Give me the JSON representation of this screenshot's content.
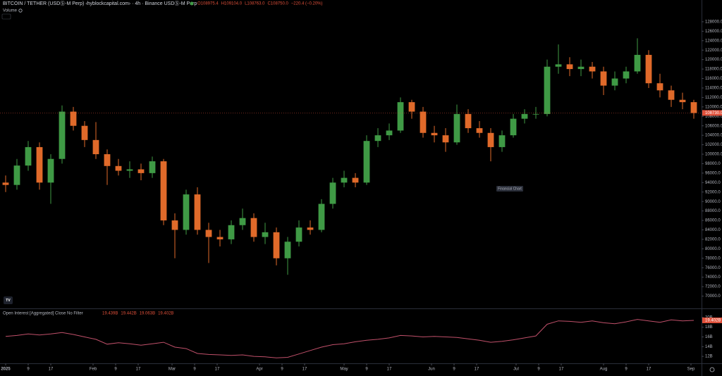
{
  "header": {
    "title": "BITCOIN / TETHER (USDⓈ-M Perp) ‹hyblockcapital.com› · 4h · Binance USDⓈ-M Perp",
    "ohlc": [
      "O108975.4",
      "H109104.0",
      "L108763.0",
      "C108750.0",
      "−220.4 (−0.20%)"
    ],
    "volume_label": "Volume",
    "tooltip": "Financial Chart",
    "logo": "TV"
  },
  "chart_data": [
    {
      "type": "candlestick",
      "up_color": "#3f9a45",
      "down_color": "#e06a2a",
      "x": [
        0,
        4,
        8,
        12,
        16,
        20,
        24,
        28,
        32,
        36,
        40,
        44,
        48,
        52,
        56,
        60,
        64,
        68,
        72,
        76,
        80,
        84,
        88,
        92,
        96,
        100,
        104,
        108,
        112,
        116,
        120,
        124,
        128,
        132,
        136,
        140,
        144,
        148,
        152,
        156,
        160,
        164,
        168,
        172,
        176,
        180,
        184,
        188,
        192,
        196,
        200,
        204,
        208,
        212,
        216,
        220,
        224,
        228,
        232,
        236,
        240,
        244
      ],
      "open": [
        94000,
        93500,
        97600,
        101500,
        94000,
        99000,
        109000,
        106000,
        103000,
        100000,
        97500,
        96500,
        96800,
        96000,
        98500,
        86000,
        84000,
        91500,
        84000,
        82500,
        82000,
        85000,
        86500,
        82500,
        83500,
        78000,
        81500,
        84500,
        84000,
        89500,
        94000,
        95000,
        94000,
        102800,
        104000,
        105000,
        111000,
        109000,
        104500,
        104000,
        102500,
        108500,
        105500,
        104500,
        101500,
        104000,
        107500,
        108500,
        108500,
        118500,
        119000,
        118000,
        118500,
        117500,
        114500,
        116000,
        117500,
        121000,
        115000,
        113500,
        111500,
        111000
      ],
      "high": [
        95500,
        99000,
        102800,
        102500,
        100000,
        110300,
        110000,
        107000,
        106800,
        101000,
        99000,
        98500,
        98000,
        99500,
        99000,
        87500,
        92500,
        93000,
        85500,
        84000,
        86000,
        88500,
        87500,
        85500,
        84500,
        82500,
        86000,
        86000,
        90500,
        95000,
        96500,
        96000,
        104000,
        105500,
        106500,
        112000,
        111500,
        110000,
        106000,
        105500,
        110500,
        109500,
        107000,
        105500,
        105000,
        108500,
        109500,
        110000,
        120000,
        123200,
        120500,
        120000,
        119500,
        118500,
        117500,
        118500,
        124500,
        122000,
        117000,
        114500,
        113000,
        111500
      ],
      "low": [
        92000,
        92500,
        96500,
        92500,
        89500,
        98000,
        105000,
        101500,
        99000,
        93500,
        95500,
        95000,
        94500,
        95000,
        85000,
        78000,
        83000,
        83000,
        77000,
        80500,
        81000,
        84000,
        81500,
        81000,
        76500,
        74500,
        80500,
        83000,
        83500,
        88500,
        93000,
        93000,
        93500,
        101500,
        103000,
        104500,
        107500,
        103500,
        102500,
        100500,
        102000,
        104500,
        103500,
        98500,
        100500,
        103500,
        106500,
        107500,
        108000,
        117000,
        116500,
        116500,
        116000,
        112500,
        113500,
        115000,
        117000,
        114000,
        112000,
        110000,
        109500,
        107500
      ],
      "close": [
        93500,
        97600,
        101500,
        94000,
        99000,
        109000,
        106000,
        103000,
        100000,
        97500,
        96500,
        96800,
        96000,
        98500,
        86000,
        84000,
        91500,
        84000,
        82500,
        82000,
        85000,
        86500,
        82500,
        83500,
        78000,
        81500,
        84500,
        84000,
        89500,
        94000,
        95000,
        94000,
        102800,
        104000,
        105000,
        111000,
        109000,
        104500,
        104000,
        102500,
        108500,
        105500,
        104500,
        101500,
        104000,
        107500,
        108500,
        108500,
        118500,
        119000,
        118000,
        118500,
        117500,
        114500,
        116000,
        117500,
        121000,
        115000,
        113500,
        111500,
        111000,
        108700
      ],
      "last_price": {
        "value": 108730,
        "label": "108730.0"
      },
      "xlim": [
        -2,
        246.75
      ],
      "ylim": [
        67400,
        132600
      ],
      "xticks": [
        {
          "value": 0,
          "label": "2025"
        },
        {
          "value": 8,
          "label": "9"
        },
        {
          "value": 16,
          "label": "17"
        },
        {
          "value": 31,
          "label": "Feb"
        },
        {
          "value": 39,
          "label": "9"
        },
        {
          "value": 47,
          "label": "17"
        },
        {
          "value": 59,
          "label": "Mar"
        },
        {
          "value": 67,
          "label": "9"
        },
        {
          "value": 75,
          "label": "17"
        },
        {
          "value": 90,
          "label": "Apr"
        },
        {
          "value": 98,
          "label": "9"
        },
        {
          "value": 106,
          "label": "17"
        },
        {
          "value": 120,
          "label": "May"
        },
        {
          "value": 128,
          "label": "9"
        },
        {
          "value": 136,
          "label": "17"
        },
        {
          "value": 151,
          "label": "Jun"
        },
        {
          "value": 159,
          "label": "9"
        },
        {
          "value": 167,
          "label": "17"
        },
        {
          "value": 181,
          "label": "Jul"
        },
        {
          "value": 189,
          "label": "9"
        },
        {
          "value": 197,
          "label": "17"
        },
        {
          "value": 212,
          "label": "Aug"
        },
        {
          "value": 220,
          "label": "9"
        },
        {
          "value": 228,
          "label": "17"
        },
        {
          "value": 243,
          "label": "Sep"
        }
      ],
      "yticks": [
        {
          "value": 70000,
          "label": "70000.0"
        },
        {
          "value": 72000,
          "label": "72000.0"
        },
        {
          "value": 74000,
          "label": "74000.0"
        },
        {
          "value": 76000,
          "label": "76000.0"
        },
        {
          "value": 78000,
          "label": "78000.0"
        },
        {
          "value": 80000,
          "label": "80000.0"
        },
        {
          "value": 82000,
          "label": "82000.0"
        },
        {
          "value": 84000,
          "label": "84000.0"
        },
        {
          "value": 86000,
          "label": "86000.0"
        },
        {
          "value": 88000,
          "label": "88000.0"
        },
        {
          "value": 90000,
          "label": "90000.0"
        },
        {
          "value": 92000,
          "label": "92000.0"
        },
        {
          "value": 94000,
          "label": "94000.0"
        },
        {
          "value": 96000,
          "label": "96000.0"
        },
        {
          "value": 98000,
          "label": "98000.0"
        },
        {
          "value": 100000,
          "label": "100000.0"
        },
        {
          "value": 102000,
          "label": "102000.0"
        },
        {
          "value": 104000,
          "label": "104000.0"
        },
        {
          "value": 106000,
          "label": "106000.0"
        },
        {
          "value": 108000,
          "label": "108000.0"
        },
        {
          "value": 110000,
          "label": "110000.0"
        },
        {
          "value": 112000,
          "label": "112000.0"
        },
        {
          "value": 114000,
          "label": "114000.0"
        },
        {
          "value": 116000,
          "label": "116000.0"
        },
        {
          "value": 118000,
          "label": "118000.0"
        },
        {
          "value": 120000,
          "label": "120000.0"
        },
        {
          "value": 122000,
          "label": "122000.0"
        },
        {
          "value": 124000,
          "label": "124000.0"
        },
        {
          "value": 126000,
          "label": "126000.0"
        },
        {
          "value": 128000,
          "label": "128000.0"
        }
      ]
    },
    {
      "type": "line",
      "title": "Open Interest [Aggregated] Close No Filter",
      "ohlc": [
        "19.439B",
        "19.442B",
        "19.063B",
        "19.402B"
      ],
      "color": "#c0506a",
      "x": [
        0,
        4,
        8,
        12,
        16,
        20,
        24,
        28,
        32,
        36,
        40,
        44,
        48,
        52,
        56,
        60,
        64,
        68,
        72,
        76,
        80,
        84,
        88,
        92,
        96,
        100,
        104,
        108,
        112,
        116,
        120,
        124,
        128,
        132,
        136,
        140,
        144,
        148,
        152,
        156,
        160,
        164,
        168,
        172,
        176,
        180,
        184,
        188,
        192,
        196,
        200,
        204,
        208,
        212,
        216,
        220,
        224,
        228,
        232,
        236,
        240,
        244
      ],
      "values": [
        16.1,
        16.3,
        16.6,
        16.4,
        16.6,
        16.9,
        16.5,
        16.0,
        15.5,
        14.5,
        14.8,
        14.6,
        14.3,
        14.6,
        14.9,
        13.9,
        13.6,
        12.6,
        12.4,
        12.3,
        12.2,
        12.3,
        12.0,
        11.9,
        11.7,
        11.8,
        12.5,
        13.2,
        13.9,
        14.4,
        14.6,
        15.0,
        15.3,
        15.5,
        15.8,
        16.3,
        16.2,
        16.0,
        16.1,
        16.0,
        15.9,
        15.6,
        15.3,
        14.9,
        15.1,
        15.4,
        15.8,
        16.2,
        18.6,
        19.3,
        19.2,
        19.0,
        19.3,
        18.9,
        18.7,
        19.1,
        19.6,
        19.3,
        19.0,
        19.5,
        19.3,
        19.4
      ],
      "last_value": {
        "value": 19.402,
        "label": "19.402B"
      },
      "xlim": [
        -2,
        246.75
      ],
      "ylim": [
        10.57,
        21.86
      ],
      "yticks": [
        {
          "value": 12,
          "label": "12B"
        },
        {
          "value": 14,
          "label": "14B"
        },
        {
          "value": 16,
          "label": "16B"
        },
        {
          "value": 18,
          "label": "18B"
        },
        {
          "value": 20,
          "label": "20B"
        }
      ]
    }
  ]
}
